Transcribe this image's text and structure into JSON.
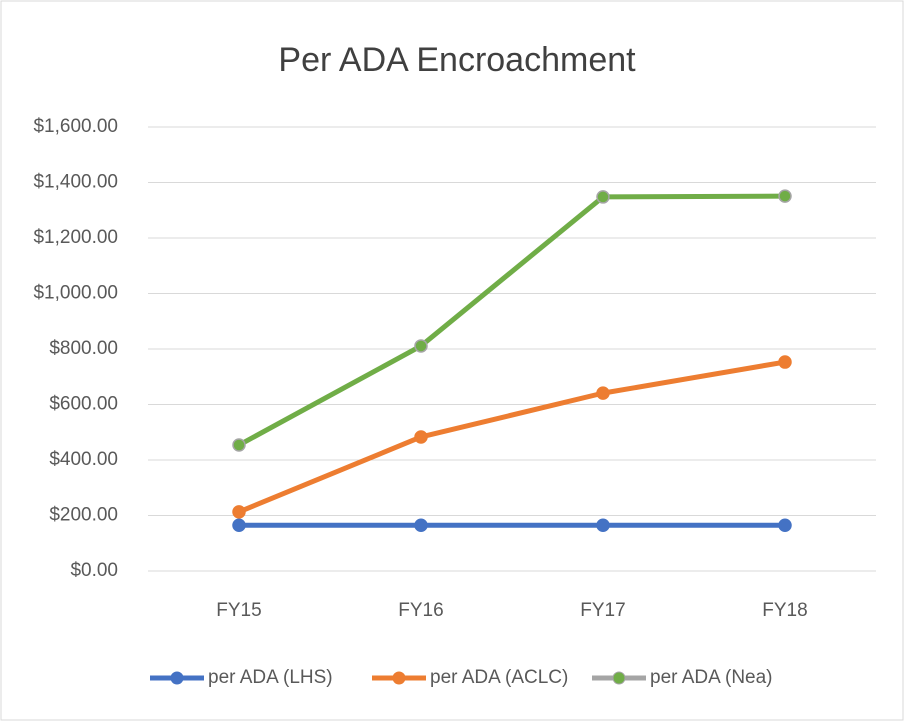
{
  "chart_data": {
    "type": "line",
    "title": "Per ADA Encroachment",
    "categories": [
      "FY15",
      "FY16",
      "FY17",
      "FY18"
    ],
    "series": [
      {
        "name": "per ADA (LHS)",
        "color": "#4472c4",
        "values": [
          165,
          165,
          165,
          165
        ]
      },
      {
        "name": "per ADA (ACLC)",
        "color": "#ed7d31",
        "values": [
          213,
          483,
          641,
          753
        ]
      },
      {
        "name": "per ADA (Nea)",
        "color": "#70ad47",
        "values": [
          454,
          811,
          1348,
          1351
        ]
      }
    ],
    "ylim": [
      0,
      1600
    ],
    "yticks": [
      {
        "value": 0,
        "label": "$0.00"
      },
      {
        "value": 200,
        "label": "$200.00"
      },
      {
        "value": 400,
        "label": "$400.00"
      },
      {
        "value": 600,
        "label": "$600.00"
      },
      {
        "value": 800,
        "label": "$800.00"
      },
      {
        "value": 1000,
        "label": "$1,000.00"
      },
      {
        "value": 1200,
        "label": "$1,200.00"
      },
      {
        "value": 1400,
        "label": "$1,400.00"
      },
      {
        "value": 1600,
        "label": "$1,600.00"
      }
    ],
    "grid": true,
    "legend": "bottom"
  }
}
